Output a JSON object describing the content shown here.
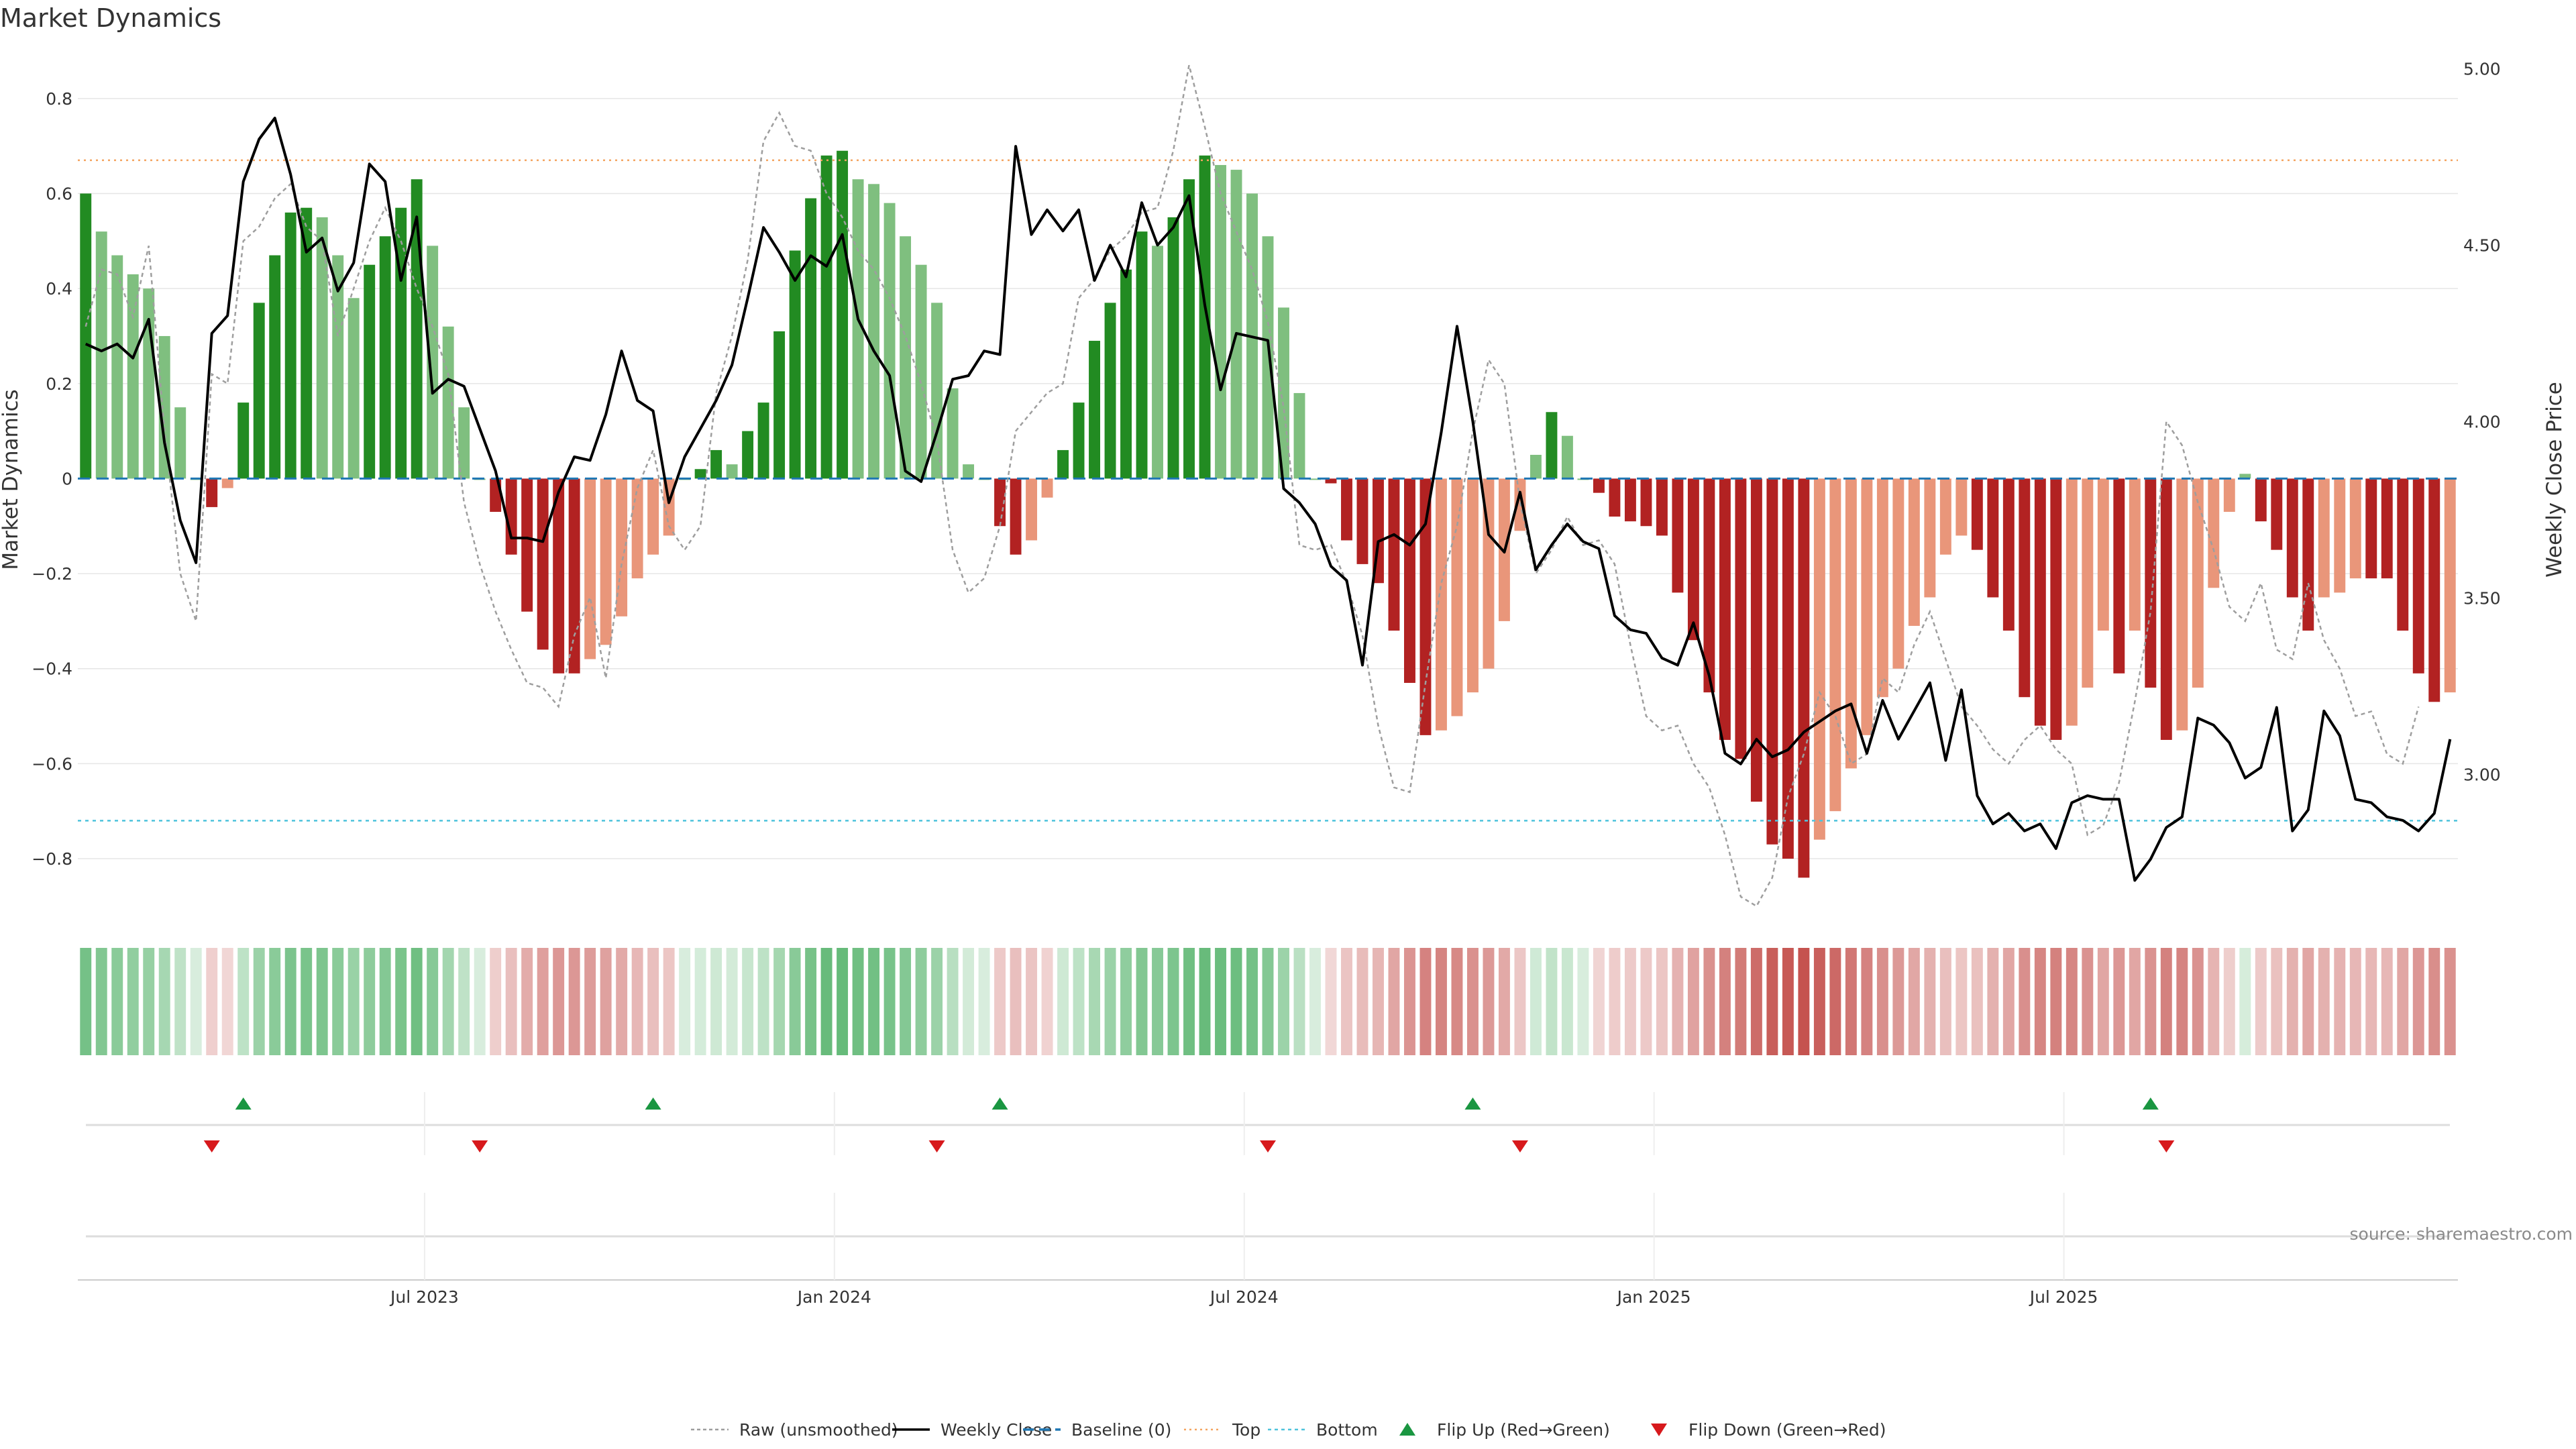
{
  "chart_data": {
    "type": "bar",
    "title": "Market Dynamics",
    "ylabel": "Market Dynamics",
    "y2label": "Weekly Close Price",
    "ylim": [
      -0.92,
      0.9
    ],
    "y2lim": [
      2.6,
      5.05
    ],
    "yticks": [
      "0.8",
      "0.6",
      "0.4",
      "0.2",
      "0",
      "−0.2",
      "−0.4",
      "−0.6",
      "−0.8"
    ],
    "yticks_values": [
      0.8,
      0.6,
      0.4,
      0.2,
      0,
      -0.2,
      -0.4,
      -0.6,
      -0.8
    ],
    "y2ticks": [
      "5.00",
      "4.50",
      "4.00",
      "3.50",
      "3.00"
    ],
    "y2ticks_values": [
      5.0,
      4.5,
      4.0,
      3.5,
      3.0
    ],
    "xticks": [
      "Jul 2023",
      "Jan 2024",
      "Jul 2024",
      "Jan 2025",
      "Jul 2025"
    ],
    "xticks_week_index": [
      22,
      48,
      74,
      100,
      126
    ],
    "grid": true,
    "start_week": "2023-02-06",
    "baseline": 0,
    "top_level": 0.67,
    "bottom_level": -0.72,
    "dynamics": [
      0.6,
      0.52,
      0.47,
      0.43,
      0.4,
      0.3,
      0.15,
      0.0,
      -0.06,
      -0.02,
      0.16,
      0.37,
      0.47,
      0.56,
      0.57,
      0.55,
      0.47,
      0.38,
      0.45,
      0.51,
      0.57,
      0.63,
      0.49,
      0.32,
      0.15,
      0.0,
      -0.07,
      -0.16,
      -0.28,
      -0.36,
      -0.41,
      -0.41,
      -0.38,
      -0.35,
      -0.29,
      -0.21,
      -0.16,
      -0.12,
      0.0,
      0.02,
      0.06,
      0.03,
      0.1,
      0.16,
      0.31,
      0.48,
      0.59,
      0.68,
      0.69,
      0.63,
      0.62,
      0.58,
      0.51,
      0.45,
      0.37,
      0.19,
      0.03,
      0.0,
      -0.1,
      -0.16,
      -0.13,
      -0.04,
      0.06,
      0.16,
      0.29,
      0.37,
      0.44,
      0.52,
      0.49,
      0.55,
      0.63,
      0.68,
      0.66,
      0.65,
      0.6,
      0.51,
      0.36,
      0.18,
      0.0,
      -0.01,
      -0.13,
      -0.18,
      -0.22,
      -0.32,
      -0.43,
      -0.54,
      -0.53,
      -0.5,
      -0.45,
      -0.4,
      -0.3,
      -0.11,
      0.05,
      0.14,
      0.09,
      0.0,
      -0.03,
      -0.08,
      -0.09,
      -0.1,
      -0.12,
      -0.24,
      -0.34,
      -0.45,
      -0.55,
      -0.59,
      -0.68,
      -0.77,
      -0.8,
      -0.84,
      -0.76,
      -0.7,
      -0.61,
      -0.54,
      -0.46,
      -0.4,
      -0.31,
      -0.25,
      -0.16,
      -0.12,
      -0.15,
      -0.25,
      -0.32,
      -0.46,
      -0.52,
      -0.55,
      -0.52,
      -0.44,
      -0.32,
      -0.41,
      -0.32,
      -0.44,
      -0.55,
      -0.53,
      -0.44,
      -0.23,
      -0.07,
      0.01,
      -0.09,
      -0.15,
      -0.25,
      -0.32,
      -0.25,
      -0.24,
      -0.21,
      -0.21,
      -0.21,
      -0.32,
      -0.41,
      -0.47,
      -0.45
    ],
    "raw": [
      0.32,
      0.44,
      0.43,
      0.34,
      0.49,
      0.1,
      -0.2,
      -0.3,
      0.22,
      0.2,
      0.5,
      0.53,
      0.59,
      0.62,
      0.53,
      0.5,
      0.3,
      0.4,
      0.5,
      0.57,
      0.5,
      0.4,
      0.32,
      0.22,
      -0.05,
      -0.18,
      -0.28,
      -0.36,
      -0.43,
      -0.44,
      -0.48,
      -0.33,
      -0.25,
      -0.42,
      -0.18,
      -0.02,
      0.06,
      -0.1,
      -0.15,
      -0.1,
      0.18,
      0.3,
      0.46,
      0.71,
      0.77,
      0.7,
      0.69,
      0.6,
      0.55,
      0.48,
      0.44,
      0.38,
      0.3,
      0.2,
      0.08,
      -0.15,
      -0.24,
      -0.21,
      -0.1,
      0.1,
      0.14,
      0.18,
      0.2,
      0.38,
      0.42,
      0.48,
      0.51,
      0.56,
      0.57,
      0.69,
      0.87,
      0.74,
      0.6,
      0.52,
      0.44,
      0.33,
      0.15,
      -0.14,
      -0.15,
      -0.14,
      -0.22,
      -0.33,
      -0.52,
      -0.65,
      -0.66,
      -0.43,
      -0.22,
      -0.1,
      0.1,
      0.25,
      0.2,
      -0.05,
      -0.2,
      -0.15,
      -0.08,
      -0.14,
      -0.13,
      -0.18,
      -0.35,
      -0.5,
      -0.53,
      -0.52,
      -0.6,
      -0.65,
      -0.75,
      -0.88,
      -0.9,
      -0.84,
      -0.67,
      -0.58,
      -0.45,
      -0.5,
      -0.6,
      -0.58,
      -0.42,
      -0.45,
      -0.35,
      -0.28,
      -0.38,
      -0.48,
      -0.52,
      -0.57,
      -0.6,
      -0.55,
      -0.52,
      -0.57,
      -0.6,
      -0.75,
      -0.73,
      -0.64,
      -0.47,
      -0.28,
      0.12,
      0.07,
      -0.05,
      -0.15,
      -0.27,
      -0.3,
      -0.22,
      -0.36,
      -0.38,
      -0.22,
      -0.34,
      -0.4,
      -0.5,
      -0.49,
      -0.58,
      -0.6,
      -0.48
    ],
    "weekly_close": [
      4.22,
      4.2,
      4.22,
      4.18,
      4.29,
      3.94,
      3.72,
      3.6,
      4.25,
      4.3,
      4.68,
      4.8,
      4.86,
      4.7,
      4.48,
      4.52,
      4.37,
      4.45,
      4.73,
      4.68,
      4.4,
      4.58,
      4.08,
      4.12,
      4.1,
      3.98,
      3.86,
      3.67,
      3.67,
      3.66,
      3.8,
      3.9,
      3.89,
      4.02,
      4.2,
      4.06,
      4.03,
      3.77,
      3.9,
      3.98,
      4.06,
      4.16,
      4.35,
      4.55,
      4.48,
      4.4,
      4.47,
      4.44,
      4.53,
      4.29,
      4.2,
      4.13,
      3.86,
      3.83,
      3.97,
      4.12,
      4.13,
      4.2,
      4.19,
      4.78,
      4.53,
      4.6,
      4.54,
      4.6,
      4.4,
      4.5,
      4.41,
      4.62,
      4.5,
      4.55,
      4.64,
      4.33,
      4.09,
      4.25,
      4.24,
      4.23,
      3.81,
      3.77,
      3.71,
      3.59,
      3.55,
      3.31,
      3.66,
      3.68,
      3.65,
      3.71,
      3.97,
      4.27,
      4.0,
      3.68,
      3.63,
      3.8,
      3.58,
      3.65,
      3.71,
      3.66,
      3.64,
      3.45,
      3.41,
      3.4,
      3.33,
      3.31,
      3.43,
      3.28,
      3.06,
      3.03,
      3.1,
      3.05,
      3.07,
      3.12,
      3.15,
      3.18,
      3.2,
      3.06,
      3.21,
      3.1,
      3.18,
      3.26,
      3.04,
      3.24,
      2.94,
      2.86,
      2.89,
      2.84,
      2.86,
      2.79,
      2.92,
      2.94,
      2.93,
      2.93,
      2.7,
      2.76,
      2.85,
      2.88,
      3.16,
      3.14,
      3.09,
      2.99,
      3.02,
      3.19,
      2.84,
      2.9,
      3.18,
      3.11,
      2.93,
      2.92,
      2.88,
      2.87,
      2.84,
      2.89,
      3.1
    ],
    "flip_up_week_index": [
      10,
      36,
      58,
      88,
      131
    ],
    "flip_down_week_index": [
      8,
      25,
      54,
      75,
      91,
      132
    ],
    "colors": {
      "strong_green": "#228b22",
      "weak_green": "#7fbf7f",
      "strong_red": "#b22222",
      "weak_red": "#e9967a",
      "raw_line": "#9e9e9e",
      "close_line": "#000000",
      "baseline": "#1f77b4",
      "top_line": "#f4a460",
      "bottom_line": "#4fc3dc",
      "flip_up": "#1a9641",
      "flip_down": "#d7191c",
      "grid": "#e6e6e6"
    }
  },
  "legend": [
    {
      "label": "Raw (unsmoothed)",
      "icon": "dotted-gray-line"
    },
    {
      "label": "Weekly Close",
      "icon": "solid-black-line"
    },
    {
      "label": "Baseline (0)",
      "icon": "dashed-blue-line"
    },
    {
      "label": "Top",
      "icon": "dotted-orange-line"
    },
    {
      "label": "Bottom",
      "icon": "dotted-cyan-line"
    },
    {
      "label": "Flip Up (Red→Green)",
      "icon": "green-up-triangle"
    },
    {
      "label": "Flip Down (Green→Red)",
      "icon": "red-down-triangle"
    }
  ],
  "source_text": "source: sharemaestro.com"
}
